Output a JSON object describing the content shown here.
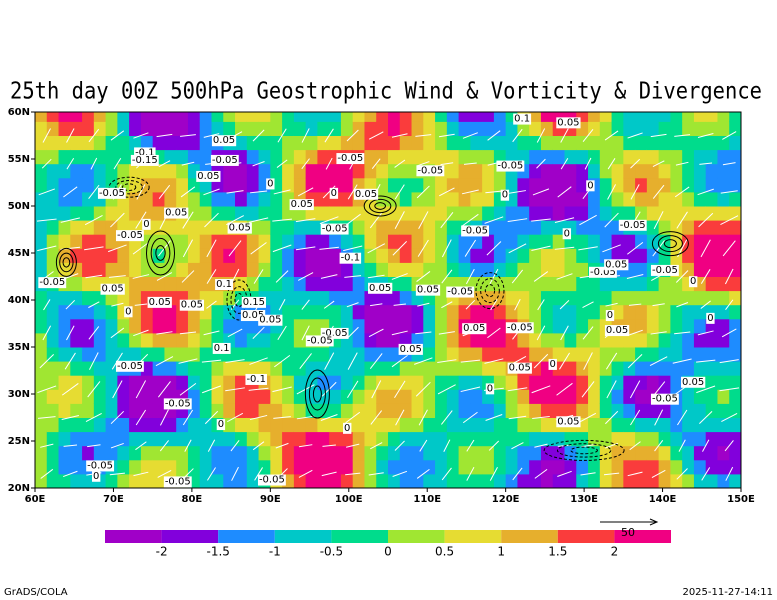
{
  "map": {
    "title": "25th day 00Z 500hPa Geostrophic Wind & Vorticity & Divergence",
    "xlim": [
      60,
      150
    ],
    "ylim": [
      20,
      60
    ],
    "xticks": [
      {
        "value": 60,
        "label": "60E"
      },
      {
        "value": 70,
        "label": "70E"
      },
      {
        "value": 80,
        "label": "80E"
      },
      {
        "value": 90,
        "label": "90E"
      },
      {
        "value": 100,
        "label": "100E"
      },
      {
        "value": 110,
        "label": "110E"
      },
      {
        "value": 120,
        "label": "120E"
      },
      {
        "value": 130,
        "label": "130E"
      },
      {
        "value": 140,
        "label": "140E"
      },
      {
        "value": 150,
        "label": "150E"
      }
    ],
    "yticks": [
      {
        "value": 20,
        "label": "20N"
      },
      {
        "value": 25,
        "label": "25N"
      },
      {
        "value": 30,
        "label": "30N"
      },
      {
        "value": 35,
        "label": "35N"
      },
      {
        "value": 40,
        "label": "40N"
      },
      {
        "value": 45,
        "label": "45N"
      },
      {
        "value": 50,
        "label": "50N"
      },
      {
        "value": 55,
        "label": "55N"
      },
      {
        "value": 60,
        "label": "60N"
      }
    ],
    "colorbar": {
      "levels": [
        -2,
        -1.5,
        -1,
        -0.5,
        0,
        0.5,
        1,
        1.5,
        2
      ],
      "colors": [
        "#a000c8",
        "#8200dc",
        "#1e8cff",
        "#00c8c8",
        "#00dc8c",
        "#a0e632",
        "#e6dc32",
        "#e6af2d",
        "#fa3c3c",
        "#f00082"
      ]
    },
    "vector_reference": 50,
    "contour_labels": [
      {
        "value": -0.1,
        "lon": 74.0,
        "lat": 55.7
      },
      {
        "value": -0.15,
        "lon": 74.0,
        "lat": 54.9
      },
      {
        "value": 0.05,
        "lon": 84.1,
        "lat": 57.0
      },
      {
        "value": -0.05,
        "lon": 84.2,
        "lat": 54.9
      },
      {
        "value": 0.05,
        "lon": 82.1,
        "lat": 53.2
      },
      {
        "value": -0.05,
        "lon": 69.8,
        "lat": 51.4
      },
      {
        "value": 0.05,
        "lon": 78.0,
        "lat": 49.3
      },
      {
        "value": -0.05,
        "lon": 72.1,
        "lat": 46.9
      },
      {
        "value": 0.05,
        "lon": 86.1,
        "lat": 47.7
      },
      {
        "value": 0,
        "lon": 74.2,
        "lat": 48.1
      },
      {
        "value": -0.05,
        "lon": 62.2,
        "lat": 41.9
      },
      {
        "value": 0.05,
        "lon": 69.9,
        "lat": 41.2
      },
      {
        "value": 0,
        "lon": 71.9,
        "lat": 38.8
      },
      {
        "value": 0.05,
        "lon": 75.9,
        "lat": 39.8
      },
      {
        "value": 0.05,
        "lon": 80.0,
        "lat": 39.5
      },
      {
        "value": 0.1,
        "lon": 84.1,
        "lat": 41.7
      },
      {
        "value": 0.15,
        "lon": 87.9,
        "lat": 39.8
      },
      {
        "value": 0.05,
        "lon": 87.8,
        "lat": 38.4
      },
      {
        "value": 0.05,
        "lon": 90.0,
        "lat": 37.9
      },
      {
        "value": 0.1,
        "lon": 83.8,
        "lat": 34.9
      },
      {
        "value": -0.05,
        "lon": 72.1,
        "lat": 33.0
      },
      {
        "value": -0.1,
        "lon": 88.2,
        "lat": 31.6
      },
      {
        "value": -0.05,
        "lon": 78.2,
        "lat": 29.0
      },
      {
        "value": 0,
        "lon": 83.7,
        "lat": 26.8
      },
      {
        "value": -0.05,
        "lon": 68.3,
        "lat": 22.4
      },
      {
        "value": 0,
        "lon": 67.8,
        "lat": 21.3
      },
      {
        "value": -0.05,
        "lon": 78.2,
        "lat": 20.7
      },
      {
        "value": -0.05,
        "lon": 90.2,
        "lat": 20.9
      },
      {
        "value": 0,
        "lon": 90.0,
        "lat": 52.4
      },
      {
        "value": 0.05,
        "lon": 94.0,
        "lat": 50.2
      },
      {
        "value": -0.05,
        "lon": 100.2,
        "lat": 55.1
      },
      {
        "value": 0,
        "lon": 98.1,
        "lat": 51.4
      },
      {
        "value": 0.05,
        "lon": 102.2,
        "lat": 51.3
      },
      {
        "value": -0.05,
        "lon": 98.2,
        "lat": 47.6
      },
      {
        "value": -0.1,
        "lon": 100.2,
        "lat": 44.5
      },
      {
        "value": 0.05,
        "lon": 104.0,
        "lat": 41.3
      },
      {
        "value": -0.05,
        "lon": 98.2,
        "lat": 36.5
      },
      {
        "value": -0.05,
        "lon": 96.3,
        "lat": 35.7
      },
      {
        "value": 0,
        "lon": 99.8,
        "lat": 26.4
      },
      {
        "value": -0.05,
        "lon": 110.4,
        "lat": 53.8
      },
      {
        "value": 0.05,
        "lon": 110.1,
        "lat": 41.1
      },
      {
        "value": -0.05,
        "lon": 114.2,
        "lat": 40.9
      },
      {
        "value": -0.05,
        "lon": 116.1,
        "lat": 47.4
      },
      {
        "value": 0,
        "lon": 119.9,
        "lat": 51.2
      },
      {
        "value": -0.05,
        "lon": 120.6,
        "lat": 54.3
      },
      {
        "value": 0.1,
        "lon": 122.1,
        "lat": 59.3
      },
      {
        "value": 0.05,
        "lon": 128.0,
        "lat": 58.9
      },
      {
        "value": 0.05,
        "lon": 116.0,
        "lat": 37.0
      },
      {
        "value": -0.05,
        "lon": 121.8,
        "lat": 37.1
      },
      {
        "value": 0.05,
        "lon": 121.8,
        "lat": 32.8
      },
      {
        "value": 0,
        "lon": 126.0,
        "lat": 33.2
      },
      {
        "value": 0,
        "lon": 118.0,
        "lat": 30.6
      },
      {
        "value": 0.05,
        "lon": 128.0,
        "lat": 27.1
      },
      {
        "value": 0.05,
        "lon": 107.9,
        "lat": 34.8
      },
      {
        "value": 0,
        "lon": 130.8,
        "lat": 52.2
      },
      {
        "value": 0,
        "lon": 127.8,
        "lat": 47.1
      },
      {
        "value": -0.05,
        "lon": 132.4,
        "lat": 43.0
      },
      {
        "value": 0.05,
        "lon": 134.1,
        "lat": 43.8
      },
      {
        "value": -0.05,
        "lon": 136.2,
        "lat": 48.0
      },
      {
        "value": 0.05,
        "lon": 134.2,
        "lat": 36.8
      },
      {
        "value": 0,
        "lon": 133.3,
        "lat": 38.4
      },
      {
        "value": -0.05,
        "lon": 140.3,
        "lat": 43.2
      },
      {
        "value": 0,
        "lon": 143.9,
        "lat": 42.0
      },
      {
        "value": 0,
        "lon": 146.1,
        "lat": 38.1
      },
      {
        "value": 0.05,
        "lon": 143.9,
        "lat": 31.3
      },
      {
        "value": -0.05,
        "lon": 140.3,
        "lat": 29.5
      }
    ],
    "footer_left": "GrADS/COLA",
    "footer_right": "2025-11-27-14:11"
  }
}
